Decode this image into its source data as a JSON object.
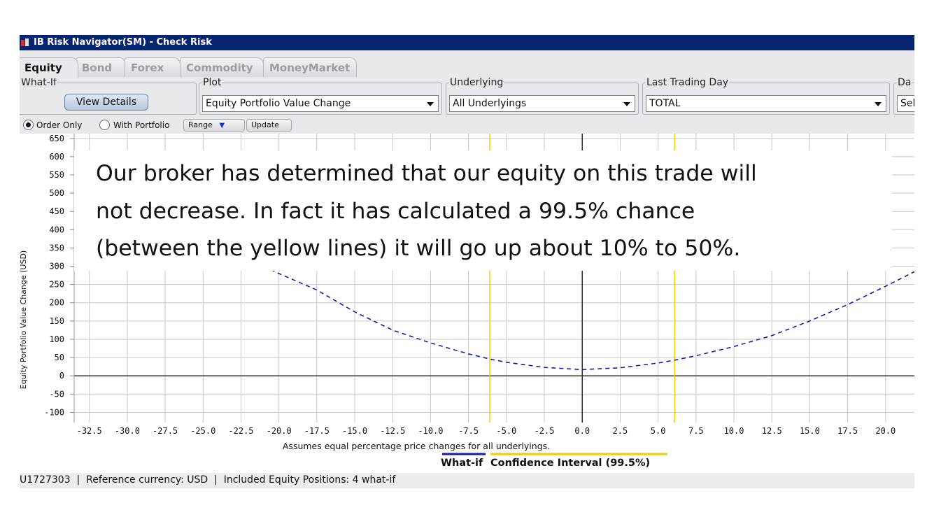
{
  "window": {
    "title": "IB Risk Navigator(SM) - Check Risk",
    "icon": "app-icon"
  },
  "tabs": [
    {
      "label": "Equity",
      "active": true
    },
    {
      "label": "Bond",
      "active": false
    },
    {
      "label": "Forex",
      "active": false
    },
    {
      "label": "Commodity",
      "active": false
    },
    {
      "label": "MoneyMarket",
      "active": false
    }
  ],
  "whatif": {
    "legend": "What-If",
    "button": "View Details"
  },
  "plot": {
    "legend": "Plot",
    "value": "Equity Portfolio Value Change"
  },
  "underlying": {
    "legend": "Underlying",
    "value": "All Underlyings"
  },
  "last_trading_day": {
    "legend": "Last Trading Day",
    "value": "TOTAL"
  },
  "date_group": {
    "legend": "Da",
    "value": "Sel"
  },
  "options": {
    "order_only": "Order Only",
    "with_portfolio": "With Portfolio",
    "order_only_selected": true,
    "range": "Range",
    "update": "Update"
  },
  "overlay_text": [
    "Our broker has determined that our equity on this trade will",
    "not decrease. In fact it has calculated a 99.5% chance",
    "(between the yellow lines) it will go up about 10% to 50%."
  ],
  "legend": {
    "assumption": "Assumes equal percentage price changes for all underlyings.",
    "whatif_label": "What-if",
    "ci_label": "Confidence Interval (99.5%)"
  },
  "status": {
    "account": "U1727303",
    "currency": "Reference currency: USD",
    "positions": "Included Equity Positions: 4 what-if"
  },
  "colors": {
    "title_bar": "#06246f",
    "whatif_line": "#1a1aa8",
    "confidence": "#f5cc00",
    "tab_active": "#111111"
  },
  "chart_data": {
    "type": "line",
    "ylabel": "Equity Portfolio Value Change (USD)",
    "xlabel": "",
    "xlim": [
      -33.5,
      21.9
    ],
    "ylim": [
      -128,
      663
    ],
    "yticks": [
      650,
      600,
      550,
      500,
      450,
      400,
      350,
      300,
      250,
      200,
      150,
      100,
      50,
      0,
      -50,
      -100
    ],
    "xticks": [
      -32.5,
      -30.0,
      -27.5,
      -25.0,
      -22.5,
      -20.0,
      -17.5,
      -15.0,
      -12.5,
      -10.0,
      -7.5,
      -5.0,
      -2.5,
      0.0,
      2.5,
      5.0,
      7.5,
      10.0,
      12.5,
      15.0,
      17.5,
      20.0
    ],
    "confidence_interval": [
      -6.1,
      6.1
    ],
    "series": [
      {
        "name": "What-if",
        "style": "dashed",
        "x": [
          -21,
          -20,
          -17.5,
          -15,
          -12.5,
          -10,
          -7.5,
          -6,
          -5,
          -2.5,
          0,
          2.5,
          5,
          6,
          7.5,
          10,
          12.5,
          15,
          17.5,
          20,
          21.9
        ],
        "y": [
          300,
          280,
          235,
          175,
          125,
          90,
          60,
          45,
          37,
          23,
          17,
          22,
          35,
          42,
          55,
          80,
          110,
          150,
          195,
          245,
          285
        ]
      }
    ],
    "grid": true
  }
}
